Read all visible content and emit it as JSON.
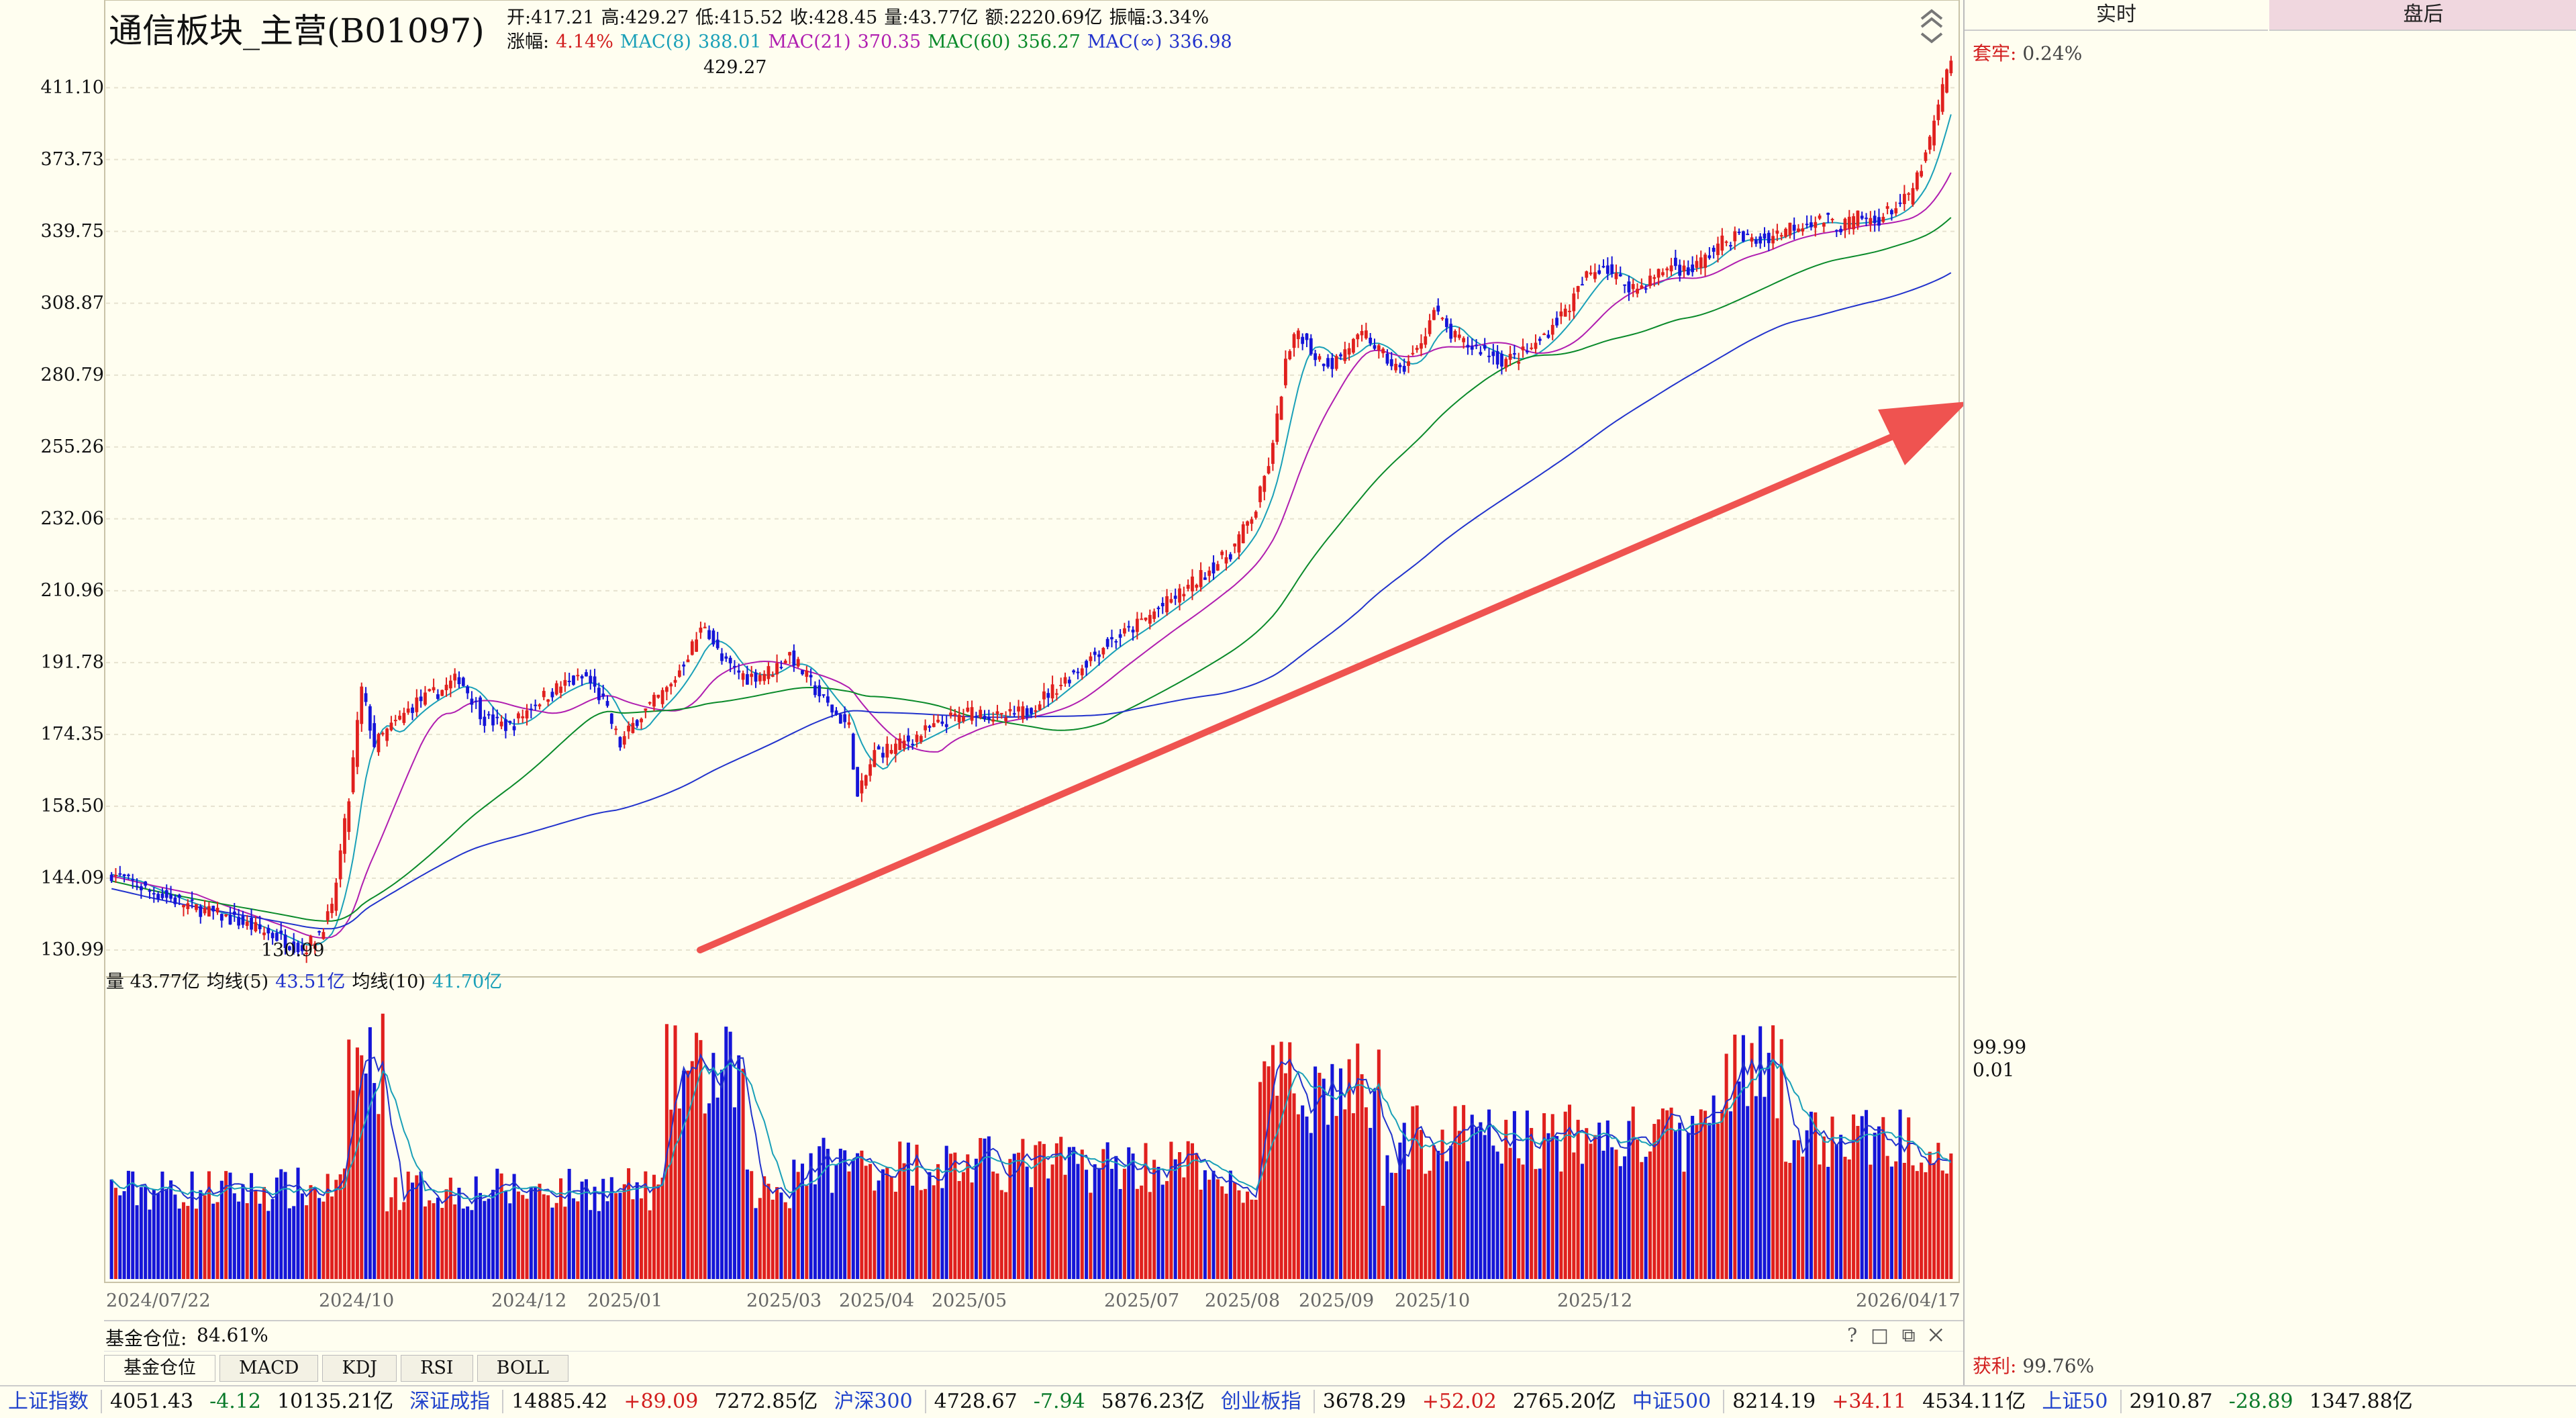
{
  "header": {
    "title": "通信板块_主营(B01097)",
    "line1": [
      {
        "label": "开:",
        "value": "417.21"
      },
      {
        "label": "高:",
        "value": "429.27"
      },
      {
        "label": "低:",
        "value": "415.52"
      },
      {
        "label": "收:",
        "value": "428.45"
      },
      {
        "label": "量:",
        "value": "43.77亿"
      },
      {
        "label": "额:",
        "value": "2220.69亿"
      },
      {
        "label": "振幅:",
        "value": "3.34%"
      }
    ],
    "line2": {
      "change_label": "涨幅:",
      "change_value": "4.14%",
      "mas": [
        {
          "label": "MAC(8)",
          "value": "388.01",
          "color": "#1aa0b8"
        },
        {
          "label": "MAC(21)",
          "value": "370.35",
          "color": "#b01eb0"
        },
        {
          "label": "MAC(60)",
          "value": "356.27",
          "color": "#0a8a2a"
        },
        {
          "label": "MAC(∞)",
          "value": "336.98",
          "color": "#2233cc"
        }
      ]
    }
  },
  "chart_data": {
    "type": "candlestick",
    "y_ticks": [
      "411.10",
      "373.73",
      "339.75",
      "308.87",
      "280.79",
      "255.26",
      "232.06",
      "210.96",
      "191.78",
      "174.35",
      "158.50",
      "144.09",
      "130.99"
    ],
    "x_ticks": [
      "2024/07/22",
      "2024/10",
      "2024/12",
      "2025/01",
      "2025/03",
      "2025/04",
      "2025/05",
      "2025/07",
      "2025/08",
      "2025/09",
      "2025/10",
      "2025/12",
      "2026/04/17"
    ],
    "max_label": "429.27",
    "min_label": "130.99",
    "waypoints": [
      [
        0,
        145
      ],
      [
        8,
        142
      ],
      [
        18,
        139
      ],
      [
        30,
        136
      ],
      [
        40,
        133
      ],
      [
        45,
        131
      ],
      [
        48,
        133
      ],
      [
        52,
        138
      ],
      [
        56,
        160
      ],
      [
        59,
        185
      ],
      [
        62,
        172
      ],
      [
        68,
        178
      ],
      [
        72,
        182
      ],
      [
        78,
        185
      ],
      [
        82,
        188
      ],
      [
        88,
        178
      ],
      [
        94,
        176
      ],
      [
        100,
        182
      ],
      [
        106,
        186
      ],
      [
        112,
        188
      ],
      [
        116,
        182
      ],
      [
        120,
        172
      ],
      [
        124,
        178
      ],
      [
        128,
        182
      ],
      [
        132,
        186
      ],
      [
        136,
        194
      ],
      [
        140,
        202
      ],
      [
        144,
        192
      ],
      [
        150,
        188
      ],
      [
        156,
        190
      ],
      [
        160,
        194
      ],
      [
        166,
        185
      ],
      [
        170,
        180
      ],
      [
        174,
        176
      ],
      [
        176,
        160
      ],
      [
        180,
        170
      ],
      [
        186,
        172
      ],
      [
        192,
        175
      ],
      [
        198,
        178
      ],
      [
        204,
        180
      ],
      [
        210,
        178
      ],
      [
        216,
        180
      ],
      [
        222,
        185
      ],
      [
        228,
        190
      ],
      [
        234,
        196
      ],
      [
        240,
        200
      ],
      [
        246,
        205
      ],
      [
        252,
        210
      ],
      [
        258,
        216
      ],
      [
        264,
        222
      ],
      [
        270,
        235
      ],
      [
        274,
        255
      ],
      [
        277,
        285
      ],
      [
        280,
        298
      ],
      [
        284,
        288
      ],
      [
        288,
        285
      ],
      [
        292,
        292
      ],
      [
        296,
        296
      ],
      [
        300,
        288
      ],
      [
        304,
        282
      ],
      [
        308,
        290
      ],
      [
        312,
        306
      ],
      [
        316,
        296
      ],
      [
        320,
        292
      ],
      [
        324,
        290
      ],
      [
        328,
        286
      ],
      [
        332,
        288
      ],
      [
        336,
        292
      ],
      [
        340,
        300
      ],
      [
        344,
        308
      ],
      [
        348,
        320
      ],
      [
        352,
        325
      ],
      [
        356,
        318
      ],
      [
        360,
        315
      ],
      [
        364,
        320
      ],
      [
        368,
        325
      ],
      [
        372,
        322
      ],
      [
        376,
        328
      ],
      [
        380,
        335
      ],
      [
        384,
        338
      ],
      [
        388,
        335
      ],
      [
        392,
        338
      ],
      [
        396,
        342
      ],
      [
        400,
        344
      ],
      [
        404,
        345
      ],
      [
        408,
        342
      ],
      [
        412,
        346
      ],
      [
        416,
        344
      ],
      [
        420,
        350
      ],
      [
        424,
        355
      ],
      [
        428,
        375
      ],
      [
        430,
        392
      ],
      [
        432,
        410
      ],
      [
        434,
        428
      ]
    ],
    "n_bars": 435,
    "volume": {
      "label": "量",
      "value": "43.77亿",
      "ma5_label": "均线(5)",
      "ma5_value": "43.51亿",
      "ma10_label": "均线(10)",
      "ma10_value": "41.70亿"
    }
  },
  "right_panel": {
    "tab_realtime": "实时",
    "tab_after": "盘后",
    "trapped_label": "套牢:",
    "trapped_value": "0.24%",
    "mid_top": "99.99",
    "mid_bottom": "0.01",
    "profit_label": "获利:",
    "profit_value": "99.76%"
  },
  "fund_panel": {
    "label": "基金仓位:",
    "value": "84.61%",
    "tabs": [
      "基金仓位",
      "MACD",
      "KDJ",
      "RSI",
      "BOLL"
    ],
    "icons": [
      "help-icon",
      "restore-icon",
      "maximize-icon",
      "close-icon"
    ]
  },
  "status_bar": [
    {
      "name": "上证指数",
      "value": "4051.43",
      "change": "-4.12",
      "amount": "10135.21亿"
    },
    {
      "name": "深证成指",
      "value": "14885.42",
      "change": "+89.09",
      "amount": "7272.85亿"
    },
    {
      "name": "沪深300",
      "value": "4728.67",
      "change": "-7.94",
      "amount": "5876.23亿"
    },
    {
      "name": "创业板指",
      "value": "3678.29",
      "change": "+52.02",
      "amount": "2765.20亿"
    },
    {
      "name": "中证500",
      "value": "8214.19",
      "change": "+34.11",
      "amount": "4534.11亿"
    },
    {
      "name": "上证50",
      "value": "2910.87",
      "change": "-28.89",
      "amount": "1347.88亿"
    }
  ],
  "colors": {
    "up": "#e0201e",
    "down": "#1515d8",
    "arrow": "#ef5350",
    "bg": "#FFFEF0"
  }
}
